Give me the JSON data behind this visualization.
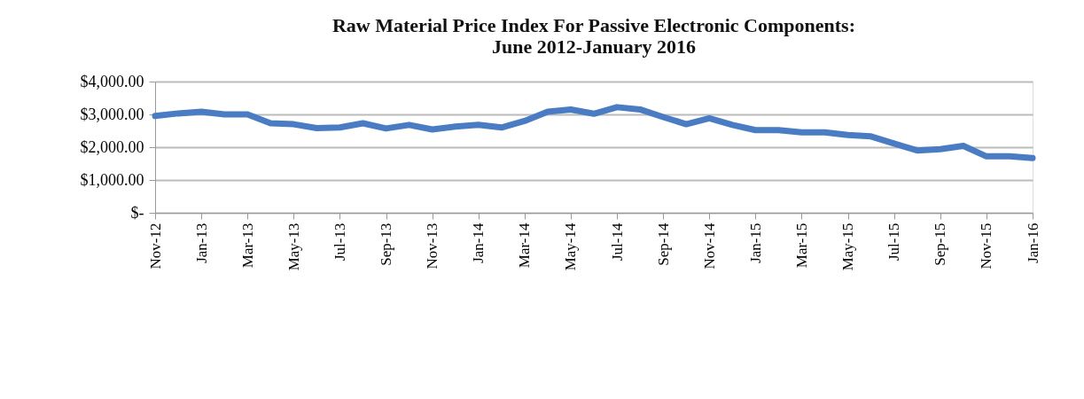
{
  "chart_data": {
    "type": "line",
    "title": "Raw Material Price Index For Passive Electronic Components:\nJune 2012-January 2016",
    "categories": [
      "Nov-12",
      null,
      "Jan-13",
      null,
      "Mar-13",
      null,
      "May-13",
      null,
      "Jul-13",
      null,
      "Sep-13",
      null,
      "Nov-13",
      null,
      "Jan-14",
      null,
      "Mar-14",
      null,
      "May-14",
      null,
      "Jul-14",
      null,
      "Sep-14",
      null,
      "Nov-14",
      null,
      "Jan-15",
      null,
      "Mar-15",
      null,
      "May-15",
      null,
      "Jul-15",
      null,
      "Sep-15",
      null,
      "Nov-15",
      null,
      "Jan-16"
    ],
    "series": [
      {
        "color": "#4a7cc4",
        "values": [
          2950,
          3030,
          3080,
          3000,
          3000,
          2730,
          2700,
          2580,
          2600,
          2730,
          2570,
          2680,
          2540,
          2630,
          2680,
          2600,
          2800,
          3080,
          3150,
          3020,
          3220,
          3150,
          2920,
          2700,
          2880,
          2680,
          2520,
          2520,
          2450,
          2450,
          2370,
          2330,
          2110,
          1900,
          1940,
          2040,
          1720,
          1720,
          1670
        ]
      }
    ],
    "ylim": [
      0,
      4000
    ],
    "yticks": [
      {
        "value": 0,
        "label": "$-"
      },
      {
        "value": 1000,
        "label": "$1,000.00"
      },
      {
        "value": 2000,
        "label": "$2,000.00"
      },
      {
        "value": 3000,
        "label": "$3,000.00"
      },
      {
        "value": 4000,
        "label": "$4,000.00"
      }
    ],
    "grid": "y",
    "legend": false,
    "line_style": "solid"
  }
}
